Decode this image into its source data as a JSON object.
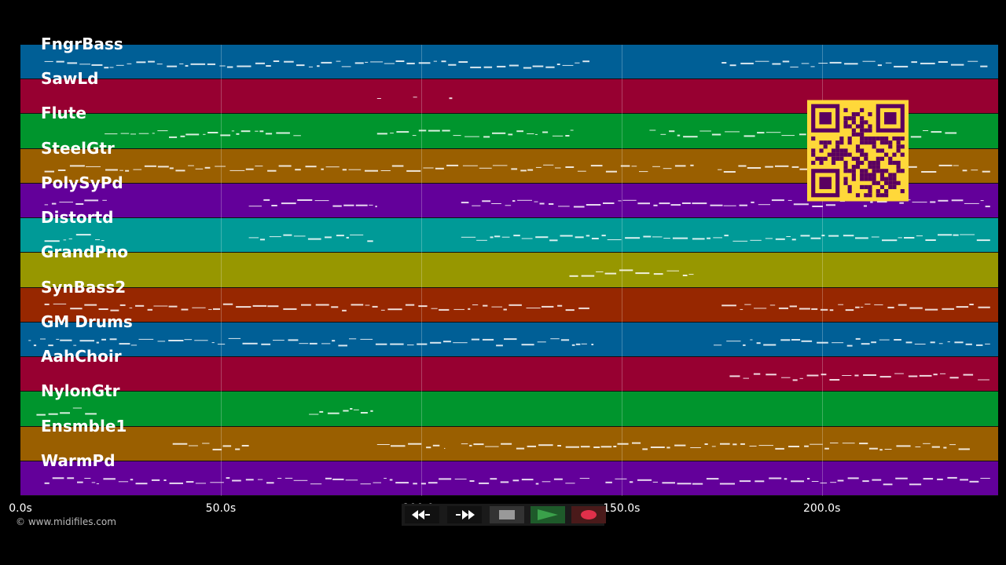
{
  "tracks": [
    {
      "name": "FngrBass",
      "color": "#005f96"
    },
    {
      "name": "SawLd",
      "color": "#970031"
    },
    {
      "name": "Flute",
      "color": "#00952d"
    },
    {
      "name": "SteelGtr",
      "color": "#9a5f00"
    },
    {
      "name": "PolySyPd",
      "color": "#63009a"
    },
    {
      "name": "Distortd",
      "color": "#009a97"
    },
    {
      "name": "GrandPno",
      "color": "#979700"
    },
    {
      "name": "SynBass2",
      "color": "#972700"
    },
    {
      "name": "GM Drums",
      "color": "#005f96"
    },
    {
      "name": "AahChoir",
      "color": "#970031"
    },
    {
      "name": "NylonGtr",
      "color": "#00952d"
    },
    {
      "name": "Ensmble1",
      "color": "#9a5f00"
    },
    {
      "name": "WarmPd",
      "color": "#63009a"
    }
  ],
  "axis": {
    "unit": "s",
    "ticks": [
      "0.0s",
      "50.0s",
      "100.0s",
      "150.0s",
      "200.0s"
    ],
    "tick_values": [
      0,
      50,
      100,
      150,
      200
    ],
    "max": 244
  },
  "copyright": "© www.midifiles.com",
  "controls": {
    "rewind_icon": "rewind-icon",
    "fast_forward_icon": "fast-forward-icon",
    "stop_icon": "stop-icon",
    "play_icon": "play-icon",
    "record_icon": "record-icon",
    "play_color": "#3aa04a",
    "record_color": "#e0304a"
  },
  "qr_code": {
    "color": "#ffd83a",
    "dark": "#5a0060"
  }
}
